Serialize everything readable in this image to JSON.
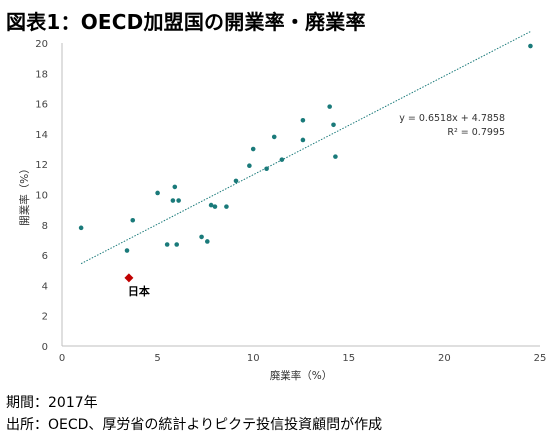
{
  "title": "図表1：OECD加盟国の開業率・廃業率",
  "footer": {
    "period": "期間：2017年",
    "source": "出所：OECD、厚労省の統計よりピクテ投信投資顧問が作成"
  },
  "chart_data": {
    "type": "scatter",
    "title": "図表1：OECD加盟国の開業率・廃業率",
    "xlabel": "廃業率（%）",
    "ylabel": "開業率（%）",
    "xlim": [
      0,
      25
    ],
    "ylim": [
      0,
      20
    ],
    "xticks": [
      0,
      5,
      10,
      15,
      20,
      25
    ],
    "yticks": [
      0,
      2,
      4,
      6,
      8,
      10,
      12,
      14,
      16,
      18,
      20
    ],
    "grid": false,
    "colors": {
      "points": "#1a7a7a",
      "trendline": "#1a7a7a",
      "highlight": "#c00000",
      "axis": "#bfbfbf"
    },
    "points": [
      {
        "x": 1.0,
        "y": 7.8
      },
      {
        "x": 3.4,
        "y": 6.3
      },
      {
        "x": 3.7,
        "y": 8.3
      },
      {
        "x": 5.0,
        "y": 10.1
      },
      {
        "x": 5.5,
        "y": 6.7
      },
      {
        "x": 5.8,
        "y": 9.6
      },
      {
        "x": 5.9,
        "y": 10.5
      },
      {
        "x": 6.0,
        "y": 6.7
      },
      {
        "x": 6.1,
        "y": 9.6
      },
      {
        "x": 7.3,
        "y": 7.2
      },
      {
        "x": 7.6,
        "y": 6.9
      },
      {
        "x": 7.8,
        "y": 9.3
      },
      {
        "x": 8.0,
        "y": 9.2
      },
      {
        "x": 8.6,
        "y": 9.2
      },
      {
        "x": 9.1,
        "y": 10.9
      },
      {
        "x": 9.8,
        "y": 11.9
      },
      {
        "x": 10.0,
        "y": 13.0
      },
      {
        "x": 10.7,
        "y": 11.7
      },
      {
        "x": 11.1,
        "y": 13.8
      },
      {
        "x": 11.5,
        "y": 12.3
      },
      {
        "x": 12.6,
        "y": 14.9
      },
      {
        "x": 12.6,
        "y": 13.6
      },
      {
        "x": 14.0,
        "y": 15.8
      },
      {
        "x": 14.2,
        "y": 14.6
      },
      {
        "x": 14.3,
        "y": 12.5
      },
      {
        "x": 24.5,
        "y": 19.8
      }
    ],
    "highlight": {
      "label": "日本",
      "x": 3.5,
      "y": 4.5
    },
    "trendline": {
      "slope": 0.6518,
      "intercept": 4.7858,
      "x_range": [
        1.0,
        24.5
      ],
      "equation": "y = 0.6518x + 4.7858",
      "r2_label": "R² = 0.7995"
    }
  }
}
